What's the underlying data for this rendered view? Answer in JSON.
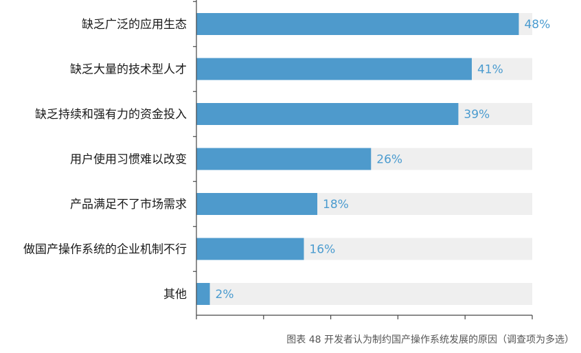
{
  "chart_data": {
    "type": "bar",
    "orientation": "horizontal",
    "categories": [
      "缺乏广泛的应用生态",
      "缺乏大量的技术型人才",
      "缺乏持续和强有力的资金投入",
      "用户使用习惯难以改变",
      "产品满足不了市场需求",
      "做国产操作系统的企业机制不行",
      "其他"
    ],
    "values": [
      48,
      41,
      39,
      26,
      18,
      16,
      2
    ],
    "value_labels": [
      "48%",
      "41%",
      "39%",
      "26%",
      "18%",
      "16%",
      "2%"
    ],
    "xlim": [
      0,
      50
    ],
    "grid": false,
    "background_track": true
  },
  "caption": "图表 48  开发者认为制约国产操作系统发展的原因（调查项为多选）",
  "colors": {
    "bar": "#4e9acc",
    "track": "#efefef",
    "value_text": "#4a9bcf",
    "axis": "#444444"
  }
}
